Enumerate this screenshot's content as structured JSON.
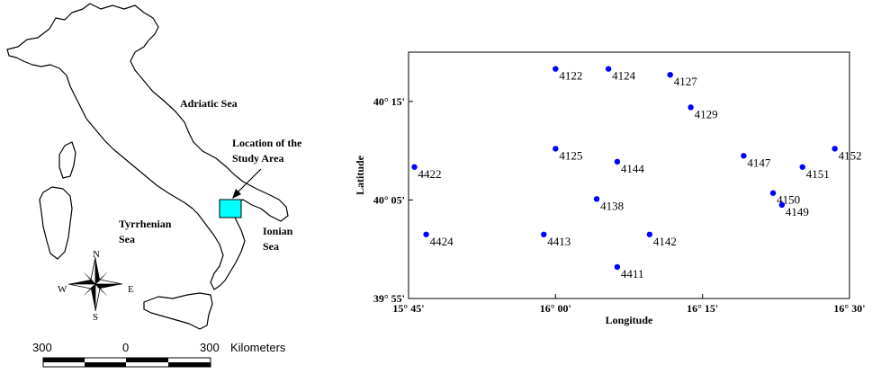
{
  "map": {
    "labels": {
      "adriatic": "Adriatic Sea",
      "study_area_line1": "Location of the",
      "study_area_line2": "Study Area",
      "tyrrhenian_line1": "Tyrrhenian",
      "tyrrhenian_line2": "Sea",
      "ionian_line1": "Ionian",
      "ionian_line2": "Sea"
    },
    "compass": {
      "n": "N",
      "s": "S",
      "e": "E",
      "w": "W"
    },
    "scale": {
      "left": "300",
      "mid": "0",
      "right": "300",
      "unit": "Kilometers"
    },
    "study_area_color": "#00ffff"
  },
  "chart_data": {
    "type": "scatter",
    "xlabel": "Longitude",
    "ylabel": "Latitude",
    "xlim": [
      15.75,
      16.5
    ],
    "ylim": [
      39.9167,
      40.3333
    ],
    "x_ticks": [
      {
        "value": 15.75,
        "label": "15° 45'"
      },
      {
        "value": 16.0,
        "label": "16° 00'"
      },
      {
        "value": 16.25,
        "label": "16° 15'"
      },
      {
        "value": 16.5,
        "label": "16° 30'"
      }
    ],
    "y_ticks": [
      {
        "value": 39.9167,
        "label": "39° 55'"
      },
      {
        "value": 40.0833,
        "label": "40° 05'"
      },
      {
        "value": 40.25,
        "label": "40° 15'"
      }
    ],
    "point_color": "#0000ff",
    "points": [
      {
        "label": "4122",
        "x": 16.0,
        "y": 40.305
      },
      {
        "label": "4124",
        "x": 16.09,
        "y": 40.305
      },
      {
        "label": "4127",
        "x": 16.195,
        "y": 40.295
      },
      {
        "label": "4129",
        "x": 16.23,
        "y": 40.24
      },
      {
        "label": "4125",
        "x": 16.0,
        "y": 40.17
      },
      {
        "label": "4144",
        "x": 16.105,
        "y": 40.148
      },
      {
        "label": "4147",
        "x": 16.32,
        "y": 40.158
      },
      {
        "label": "4152",
        "x": 16.475,
        "y": 40.17
      },
      {
        "label": "4151",
        "x": 16.42,
        "y": 40.139
      },
      {
        "label": "4422",
        "x": 15.76,
        "y": 40.139
      },
      {
        "label": "4150",
        "x": 16.37,
        "y": 40.095
      },
      {
        "label": "4138",
        "x": 16.07,
        "y": 40.085
      },
      {
        "label": "4149",
        "x": 16.385,
        "y": 40.075
      },
      {
        "label": "4424",
        "x": 15.78,
        "y": 40.025
      },
      {
        "label": "4413",
        "x": 15.98,
        "y": 40.025
      },
      {
        "label": "4142",
        "x": 16.16,
        "y": 40.025
      },
      {
        "label": "4411",
        "x": 16.105,
        "y": 39.97
      }
    ]
  }
}
